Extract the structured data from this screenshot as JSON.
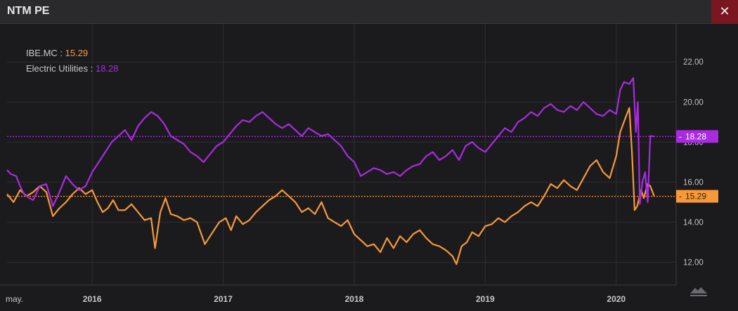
{
  "window": {
    "title": "NTM PE",
    "close_glyph": "✕"
  },
  "legend": {
    "items": [
      {
        "label": "IBE.MC : ",
        "value": "15.29"
      },
      {
        "label": "Electric Utilities : ",
        "value": "18.28"
      }
    ]
  },
  "colors": {
    "ibe": "#f7983a",
    "utilities": "#a92be0",
    "grid": "#2e2e31",
    "background": "#1b1b1d"
  },
  "chart_data": {
    "type": "line",
    "title": "NTM PE",
    "xlabel": "",
    "ylabel": "",
    "ylim": [
      11.0,
      23.2
    ],
    "yticks": [
      12,
      14,
      16,
      18,
      20,
      22
    ],
    "ytick_labels": [
      "12.00",
      "14.00",
      "16.00",
      "18.00",
      "20.00",
      "22.00"
    ],
    "xlim": [
      2015.35,
      2020.35
    ],
    "xticks": [
      2015.35,
      2016.0,
      2017.0,
      2018.0,
      2019.0,
      2020.0
    ],
    "xtick_labels": [
      "may.",
      "2016",
      "2017",
      "2018",
      "2019",
      "2020"
    ],
    "grid": true,
    "legend_position": "top-left",
    "last_value_badges": [
      {
        "series": "Electric Utilities",
        "label": "18.28",
        "value": 18.28
      },
      {
        "series": "IBE.MC",
        "label": "15.29",
        "value": 15.29
      }
    ],
    "series": [
      {
        "name": "IBE.MC",
        "color": "#f7983a",
        "last": 15.29,
        "points": [
          [
            2015.35,
            15.4
          ],
          [
            2015.4,
            15.0
          ],
          [
            2015.45,
            15.6
          ],
          [
            2015.5,
            15.3
          ],
          [
            2015.55,
            15.5
          ],
          [
            2015.6,
            15.8
          ],
          [
            2015.65,
            15.5
          ],
          [
            2015.7,
            14.3
          ],
          [
            2015.75,
            14.7
          ],
          [
            2015.8,
            15.0
          ],
          [
            2015.85,
            15.4
          ],
          [
            2015.9,
            15.7
          ],
          [
            2015.95,
            15.4
          ],
          [
            2016.0,
            15.6
          ],
          [
            2016.04,
            15.0
          ],
          [
            2016.08,
            14.5
          ],
          [
            2016.12,
            14.7
          ],
          [
            2016.16,
            15.1
          ],
          [
            2016.2,
            14.6
          ],
          [
            2016.25,
            14.6
          ],
          [
            2016.3,
            14.9
          ],
          [
            2016.35,
            14.5
          ],
          [
            2016.4,
            14.1
          ],
          [
            2016.45,
            14.2
          ],
          [
            2016.48,
            12.7
          ],
          [
            2016.52,
            14.5
          ],
          [
            2016.56,
            15.2
          ],
          [
            2016.6,
            14.4
          ],
          [
            2016.65,
            14.3
          ],
          [
            2016.7,
            14.1
          ],
          [
            2016.75,
            14.2
          ],
          [
            2016.8,
            14.0
          ],
          [
            2016.86,
            12.9
          ],
          [
            2016.92,
            13.5
          ],
          [
            2016.97,
            14.0
          ],
          [
            2017.02,
            14.2
          ],
          [
            2017.06,
            13.6
          ],
          [
            2017.1,
            14.3
          ],
          [
            2017.15,
            13.9
          ],
          [
            2017.2,
            14.1
          ],
          [
            2017.25,
            14.5
          ],
          [
            2017.3,
            14.8
          ],
          [
            2017.35,
            15.1
          ],
          [
            2017.4,
            15.3
          ],
          [
            2017.45,
            15.6
          ],
          [
            2017.5,
            15.3
          ],
          [
            2017.55,
            15.0
          ],
          [
            2017.6,
            14.5
          ],
          [
            2017.65,
            14.7
          ],
          [
            2017.7,
            14.4
          ],
          [
            2017.75,
            15.0
          ],
          [
            2017.8,
            14.2
          ],
          [
            2017.85,
            14.0
          ],
          [
            2017.9,
            13.8
          ],
          [
            2017.95,
            14.1
          ],
          [
            2018.0,
            13.4
          ],
          [
            2018.05,
            13.1
          ],
          [
            2018.1,
            12.8
          ],
          [
            2018.15,
            12.9
          ],
          [
            2018.2,
            12.5
          ],
          [
            2018.25,
            13.2
          ],
          [
            2018.3,
            12.7
          ],
          [
            2018.35,
            13.3
          ],
          [
            2018.4,
            13.0
          ],
          [
            2018.45,
            13.4
          ],
          [
            2018.5,
            13.6
          ],
          [
            2018.55,
            13.2
          ],
          [
            2018.6,
            12.9
          ],
          [
            2018.65,
            12.8
          ],
          [
            2018.7,
            12.6
          ],
          [
            2018.75,
            12.3
          ],
          [
            2018.78,
            11.9
          ],
          [
            2018.82,
            12.8
          ],
          [
            2018.86,
            13.0
          ],
          [
            2018.9,
            13.5
          ],
          [
            2018.95,
            13.3
          ],
          [
            2019.0,
            13.8
          ],
          [
            2019.05,
            13.9
          ],
          [
            2019.1,
            14.2
          ],
          [
            2019.15,
            14.0
          ],
          [
            2019.2,
            14.3
          ],
          [
            2019.25,
            14.5
          ],
          [
            2019.3,
            14.8
          ],
          [
            2019.35,
            15.0
          ],
          [
            2019.4,
            14.8
          ],
          [
            2019.45,
            15.3
          ],
          [
            2019.5,
            15.9
          ],
          [
            2019.55,
            15.7
          ],
          [
            2019.6,
            16.1
          ],
          [
            2019.65,
            15.8
          ],
          [
            2019.7,
            15.6
          ],
          [
            2019.75,
            16.2
          ],
          [
            2019.8,
            16.8
          ],
          [
            2019.85,
            17.1
          ],
          [
            2019.9,
            16.5
          ],
          [
            2019.95,
            16.2
          ],
          [
            2020.0,
            17.3
          ],
          [
            2020.03,
            18.5
          ],
          [
            2020.07,
            19.2
          ],
          [
            2020.1,
            19.7
          ],
          [
            2020.12,
            17.5
          ],
          [
            2020.14,
            14.6
          ],
          [
            2020.16,
            14.8
          ],
          [
            2020.19,
            15.6
          ],
          [
            2020.21,
            15.2
          ],
          [
            2020.24,
            15.9
          ],
          [
            2020.26,
            15.8
          ],
          [
            2020.29,
            15.29
          ]
        ]
      },
      {
        "name": "Electric Utilities",
        "color": "#a92be0",
        "last": 18.28,
        "points": [
          [
            2015.35,
            16.6
          ],
          [
            2015.38,
            16.4
          ],
          [
            2015.42,
            16.3
          ],
          [
            2015.45,
            15.8
          ],
          [
            2015.48,
            15.4
          ],
          [
            2015.52,
            15.2
          ],
          [
            2015.55,
            15.1
          ],
          [
            2015.6,
            15.8
          ],
          [
            2015.65,
            15.9
          ],
          [
            2015.7,
            14.8
          ],
          [
            2015.75,
            15.5
          ],
          [
            2015.8,
            16.3
          ],
          [
            2015.85,
            15.9
          ],
          [
            2015.9,
            15.6
          ],
          [
            2015.95,
            15.8
          ],
          [
            2016.0,
            16.5
          ],
          [
            2016.05,
            17.0
          ],
          [
            2016.1,
            17.5
          ],
          [
            2016.15,
            18.0
          ],
          [
            2016.2,
            18.3
          ],
          [
            2016.25,
            18.6
          ],
          [
            2016.3,
            18.1
          ],
          [
            2016.35,
            18.8
          ],
          [
            2016.4,
            19.2
          ],
          [
            2016.45,
            19.5
          ],
          [
            2016.5,
            19.3
          ],
          [
            2016.55,
            18.9
          ],
          [
            2016.6,
            18.3
          ],
          [
            2016.65,
            18.1
          ],
          [
            2016.7,
            17.9
          ],
          [
            2016.75,
            17.5
          ],
          [
            2016.8,
            17.3
          ],
          [
            2016.85,
            17.0
          ],
          [
            2016.9,
            17.4
          ],
          [
            2016.95,
            17.8
          ],
          [
            2017.0,
            18.0
          ],
          [
            2017.05,
            18.4
          ],
          [
            2017.1,
            18.8
          ],
          [
            2017.15,
            19.1
          ],
          [
            2017.2,
            19.0
          ],
          [
            2017.25,
            19.3
          ],
          [
            2017.3,
            19.5
          ],
          [
            2017.35,
            19.2
          ],
          [
            2017.4,
            18.9
          ],
          [
            2017.45,
            18.7
          ],
          [
            2017.5,
            18.9
          ],
          [
            2017.55,
            18.6
          ],
          [
            2017.6,
            18.3
          ],
          [
            2017.65,
            18.7
          ],
          [
            2017.7,
            18.5
          ],
          [
            2017.75,
            18.3
          ],
          [
            2017.8,
            18.4
          ],
          [
            2017.85,
            18.1
          ],
          [
            2017.9,
            17.8
          ],
          [
            2017.95,
            17.3
          ],
          [
            2018.0,
            17.0
          ],
          [
            2018.05,
            16.3
          ],
          [
            2018.1,
            16.5
          ],
          [
            2018.15,
            16.7
          ],
          [
            2018.2,
            16.6
          ],
          [
            2018.25,
            16.4
          ],
          [
            2018.3,
            16.5
          ],
          [
            2018.35,
            16.3
          ],
          [
            2018.4,
            16.6
          ],
          [
            2018.45,
            16.8
          ],
          [
            2018.5,
            16.9
          ],
          [
            2018.55,
            17.3
          ],
          [
            2018.6,
            17.5
          ],
          [
            2018.65,
            17.1
          ],
          [
            2018.7,
            17.3
          ],
          [
            2018.75,
            17.6
          ],
          [
            2018.8,
            17.1
          ],
          [
            2018.85,
            17.8
          ],
          [
            2018.9,
            18.0
          ],
          [
            2018.95,
            17.7
          ],
          [
            2019.0,
            17.5
          ],
          [
            2019.05,
            17.9
          ],
          [
            2019.1,
            18.3
          ],
          [
            2019.15,
            18.7
          ],
          [
            2019.2,
            18.5
          ],
          [
            2019.25,
            19.0
          ],
          [
            2019.3,
            19.2
          ],
          [
            2019.35,
            19.5
          ],
          [
            2019.4,
            19.3
          ],
          [
            2019.45,
            19.7
          ],
          [
            2019.5,
            19.9
          ],
          [
            2019.55,
            19.6
          ],
          [
            2019.6,
            19.5
          ],
          [
            2019.65,
            19.8
          ],
          [
            2019.7,
            19.6
          ],
          [
            2019.75,
            20.0
          ],
          [
            2019.8,
            19.7
          ],
          [
            2019.85,
            19.4
          ],
          [
            2019.9,
            19.3
          ],
          [
            2019.95,
            19.6
          ],
          [
            2020.0,
            19.4
          ],
          [
            2020.03,
            20.6
          ],
          [
            2020.06,
            21.0
          ],
          [
            2020.1,
            20.9
          ],
          [
            2020.13,
            21.2
          ],
          [
            2020.15,
            18.5
          ],
          [
            2020.165,
            20.0
          ],
          [
            2020.18,
            14.9
          ],
          [
            2020.2,
            16.0
          ],
          [
            2020.22,
            16.5
          ],
          [
            2020.24,
            15.0
          ],
          [
            2020.26,
            18.3
          ],
          [
            2020.29,
            18.28
          ]
        ]
      }
    ]
  }
}
